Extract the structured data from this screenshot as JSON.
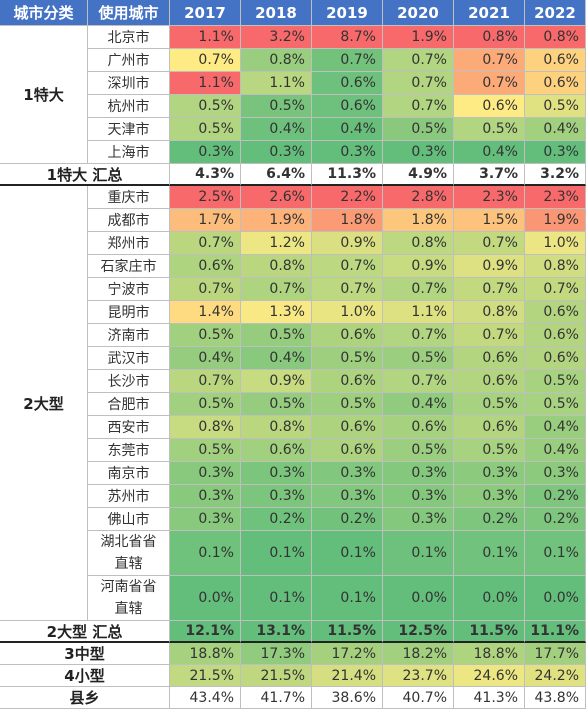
{
  "headers": [
    "城市分类",
    "使用城市",
    "2017",
    "2018",
    "2019",
    "2020",
    "2021",
    "2022"
  ],
  "colors": {
    "green": "#63be7b",
    "yellow": "#ffeb84",
    "red": "#f8696b",
    "header": "#4472c4"
  },
  "groups": [
    {
      "label": "1特大",
      "rows": [
        {
          "city": "北京市",
          "values": [
            "1.1%",
            "3.2%",
            "8.7%",
            "1.9%",
            "0.8%",
            "0.8%"
          ]
        },
        {
          "city": "广州市",
          "values": [
            "0.7%",
            "0.8%",
            "0.7%",
            "0.7%",
            "0.7%",
            "0.6%"
          ]
        },
        {
          "city": "深圳市",
          "values": [
            "1.1%",
            "1.1%",
            "0.6%",
            "0.7%",
            "0.7%",
            "0.6%"
          ]
        },
        {
          "city": "杭州市",
          "values": [
            "0.5%",
            "0.5%",
            "0.6%",
            "0.7%",
            "0.6%",
            "0.5%"
          ]
        },
        {
          "city": "天津市",
          "values": [
            "0.5%",
            "0.4%",
            "0.4%",
            "0.5%",
            "0.5%",
            "0.4%"
          ]
        },
        {
          "city": "上海市",
          "values": [
            "0.3%",
            "0.3%",
            "0.3%",
            "0.3%",
            "0.4%",
            "0.3%"
          ]
        }
      ],
      "total": {
        "label": "1特大 汇总",
        "values": [
          "4.3%",
          "6.4%",
          "11.3%",
          "4.9%",
          "3.7%",
          "3.2%"
        ]
      }
    },
    {
      "label": "2大型",
      "rows": [
        {
          "city": "重庆市",
          "values": [
            "2.5%",
            "2.6%",
            "2.2%",
            "2.8%",
            "2.3%",
            "2.3%"
          ]
        },
        {
          "city": "成都市",
          "values": [
            "1.7%",
            "1.9%",
            "1.8%",
            "1.8%",
            "1.5%",
            "1.9%"
          ]
        },
        {
          "city": "郑州市",
          "values": [
            "0.7%",
            "1.2%",
            "0.9%",
            "0.8%",
            "0.7%",
            "1.0%"
          ]
        },
        {
          "city": "石家庄市",
          "values": [
            "0.6%",
            "0.8%",
            "0.7%",
            "0.9%",
            "0.9%",
            "0.8%"
          ]
        },
        {
          "city": "宁波市",
          "values": [
            "0.7%",
            "0.7%",
            "0.7%",
            "0.7%",
            "0.7%",
            "0.7%"
          ]
        },
        {
          "city": "昆明市",
          "values": [
            "1.4%",
            "1.3%",
            "1.0%",
            "1.1%",
            "0.8%",
            "0.6%"
          ]
        },
        {
          "city": "济南市",
          "values": [
            "0.5%",
            "0.5%",
            "0.6%",
            "0.7%",
            "0.7%",
            "0.6%"
          ]
        },
        {
          "city": "武汉市",
          "values": [
            "0.4%",
            "0.4%",
            "0.5%",
            "0.5%",
            "0.6%",
            "0.6%"
          ]
        },
        {
          "city": "长沙市",
          "values": [
            "0.7%",
            "0.9%",
            "0.6%",
            "0.7%",
            "0.6%",
            "0.5%"
          ]
        },
        {
          "city": "合肥市",
          "values": [
            "0.5%",
            "0.5%",
            "0.5%",
            "0.4%",
            "0.5%",
            "0.5%"
          ]
        },
        {
          "city": "西安市",
          "values": [
            "0.8%",
            "0.8%",
            "0.6%",
            "0.6%",
            "0.6%",
            "0.4%"
          ]
        },
        {
          "city": "东莞市",
          "values": [
            "0.5%",
            "0.6%",
            "0.6%",
            "0.5%",
            "0.5%",
            "0.4%"
          ]
        },
        {
          "city": "南京市",
          "values": [
            "0.3%",
            "0.3%",
            "0.3%",
            "0.3%",
            "0.3%",
            "0.3%"
          ]
        },
        {
          "city": "苏州市",
          "values": [
            "0.3%",
            "0.3%",
            "0.3%",
            "0.3%",
            "0.3%",
            "0.2%"
          ]
        },
        {
          "city": "佛山市",
          "values": [
            "0.3%",
            "0.2%",
            "0.2%",
            "0.3%",
            "0.2%",
            "0.2%"
          ]
        },
        {
          "city": "湖北省省直辖",
          "values": [
            "0.1%",
            "0.1%",
            "0.1%",
            "0.1%",
            "0.1%",
            "0.1%"
          ]
        },
        {
          "city": "河南省省直辖",
          "values": [
            "0.0%",
            "0.1%",
            "0.1%",
            "0.0%",
            "0.0%",
            "0.0%"
          ]
        }
      ],
      "total": {
        "label": "2大型 汇总",
        "values": [
          "12.1%",
          "13.1%",
          "11.5%",
          "12.5%",
          "11.5%",
          "11.1%"
        ]
      }
    }
  ],
  "summary_rows": [
    {
      "label": "3中型",
      "values": [
        "18.8%",
        "17.3%",
        "17.2%",
        "18.2%",
        "18.8%",
        "17.7%"
      ]
    },
    {
      "label": "4小型",
      "values": [
        "21.5%",
        "21.5%",
        "21.4%",
        "23.7%",
        "24.6%",
        "24.2%"
      ]
    },
    {
      "label": "县乡",
      "values": [
        "43.4%",
        "41.7%",
        "38.6%",
        "40.7%",
        "41.3%",
        "43.8%"
      ]
    }
  ],
  "chart_data": {
    "type": "heatmap",
    "title": "",
    "x": [
      "2017",
      "2018",
      "2019",
      "2020",
      "2021",
      "2022"
    ],
    "y": [
      "北京市",
      "广州市",
      "深圳市",
      "杭州市",
      "天津市",
      "上海市",
      "1特大 汇总",
      "重庆市",
      "成都市",
      "郑州市",
      "石家庄市",
      "宁波市",
      "昆明市",
      "济南市",
      "武汉市",
      "长沙市",
      "合肥市",
      "西安市",
      "东莞市",
      "南京市",
      "苏州市",
      "佛山市",
      "湖北省省直辖",
      "河南省省直辖",
      "2大型 汇总",
      "3中型",
      "4小型",
      "县乡"
    ],
    "values": [
      [
        1.1,
        3.2,
        8.7,
        1.9,
        0.8,
        0.8
      ],
      [
        0.7,
        0.8,
        0.7,
        0.7,
        0.7,
        0.6
      ],
      [
        1.1,
        1.1,
        0.6,
        0.7,
        0.7,
        0.6
      ],
      [
        0.5,
        0.5,
        0.6,
        0.7,
        0.6,
        0.5
      ],
      [
        0.5,
        0.4,
        0.4,
        0.5,
        0.5,
        0.4
      ],
      [
        0.3,
        0.3,
        0.3,
        0.3,
        0.4,
        0.3
      ],
      [
        4.3,
        6.4,
        11.3,
        4.9,
        3.7,
        3.2
      ],
      [
        2.5,
        2.6,
        2.2,
        2.8,
        2.3,
        2.3
      ],
      [
        1.7,
        1.9,
        1.8,
        1.8,
        1.5,
        1.9
      ],
      [
        0.7,
        1.2,
        0.9,
        0.8,
        0.7,
        1.0
      ],
      [
        0.6,
        0.8,
        0.7,
        0.9,
        0.9,
        0.8
      ],
      [
        0.7,
        0.7,
        0.7,
        0.7,
        0.7,
        0.7
      ],
      [
        1.4,
        1.3,
        1.0,
        1.1,
        0.8,
        0.6
      ],
      [
        0.5,
        0.5,
        0.6,
        0.7,
        0.7,
        0.6
      ],
      [
        0.4,
        0.4,
        0.5,
        0.5,
        0.6,
        0.6
      ],
      [
        0.7,
        0.9,
        0.6,
        0.7,
        0.6,
        0.5
      ],
      [
        0.5,
        0.5,
        0.5,
        0.4,
        0.5,
        0.5
      ],
      [
        0.8,
        0.8,
        0.6,
        0.6,
        0.6,
        0.4
      ],
      [
        0.5,
        0.6,
        0.6,
        0.5,
        0.5,
        0.4
      ],
      [
        0.3,
        0.3,
        0.3,
        0.3,
        0.3,
        0.3
      ],
      [
        0.3,
        0.3,
        0.3,
        0.3,
        0.3,
        0.2
      ],
      [
        0.3,
        0.2,
        0.2,
        0.3,
        0.2,
        0.2
      ],
      [
        0.1,
        0.1,
        0.1,
        0.1,
        0.1,
        0.1
      ],
      [
        0.0,
        0.1,
        0.1,
        0.0,
        0.0,
        0.0
      ],
      [
        12.1,
        13.1,
        11.5,
        12.5,
        11.5,
        11.1
      ],
      [
        18.8,
        17.3,
        17.2,
        18.2,
        18.8,
        17.7
      ],
      [
        21.5,
        21.5,
        21.4,
        23.7,
        24.6,
        24.2
      ],
      [
        43.4,
        41.7,
        38.6,
        40.7,
        41.3,
        43.8
      ]
    ]
  }
}
